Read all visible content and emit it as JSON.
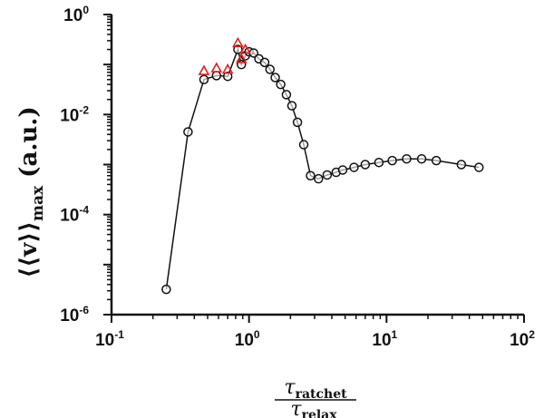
{
  "chart_data": {
    "type": "scatter",
    "xscale": "log",
    "yscale": "log",
    "xlim": [
      0.1,
      100
    ],
    "ylim": [
      1e-06,
      1
    ],
    "x_ticks": [
      {
        "base": "10",
        "exp": "-1"
      },
      {
        "base": "10",
        "exp": "0"
      },
      {
        "base": "10",
        "exp": "1"
      },
      {
        "base": "10",
        "exp": "2"
      }
    ],
    "y_ticks": [
      {
        "base": "10",
        "exp": "-6"
      },
      {
        "base": "10",
        "exp": "-4"
      },
      {
        "base": "10",
        "exp": "-2"
      },
      {
        "base": "10",
        "exp": "0"
      }
    ],
    "xlabel": {
      "num_symbol": "τ",
      "num_sub": "ratchet",
      "den_symbol": "τ",
      "den_sub": "relax"
    },
    "ylabel": {
      "main": "⟨⟨v⟩⟩",
      "sub": "max",
      "unit": " (a.u.)"
    },
    "grid": false,
    "colors": {
      "black_series": "#111111",
      "red_series": "#e02020"
    },
    "series": [
      {
        "marker": "circle",
        "connected": true,
        "color": "#111111",
        "x": [
          0.25,
          0.36,
          0.47,
          0.58,
          0.7,
          0.83,
          0.88,
          0.94,
          1.0,
          1.08,
          1.18,
          1.3,
          1.42,
          1.55,
          1.7,
          1.87,
          2.05,
          2.25,
          2.5,
          2.8,
          3.2,
          3.7,
          4.3,
          4.8,
          5.8,
          7.0,
          8.8,
          11.0,
          14.0,
          18.0,
          23.0,
          35.0,
          47.0
        ],
        "y": [
          3.2e-06,
          0.0045,
          0.05,
          0.06,
          0.058,
          0.2,
          0.1,
          0.15,
          0.18,
          0.17,
          0.13,
          0.11,
          0.08,
          0.055,
          0.04,
          0.025,
          0.015,
          0.007,
          0.0025,
          0.0006,
          0.00052,
          0.00062,
          0.0007,
          0.00078,
          0.00088,
          0.001,
          0.0011,
          0.0012,
          0.0013,
          0.0013,
          0.0012,
          0.001,
          0.00088
        ]
      },
      {
        "marker": "triangle",
        "connected": false,
        "color": "#e02020",
        "x": [
          0.47,
          0.58,
          0.7,
          0.83,
          0.88,
          0.94
        ],
        "y": [
          0.075,
          0.085,
          0.08,
          0.27,
          0.13,
          0.2
        ]
      }
    ]
  }
}
